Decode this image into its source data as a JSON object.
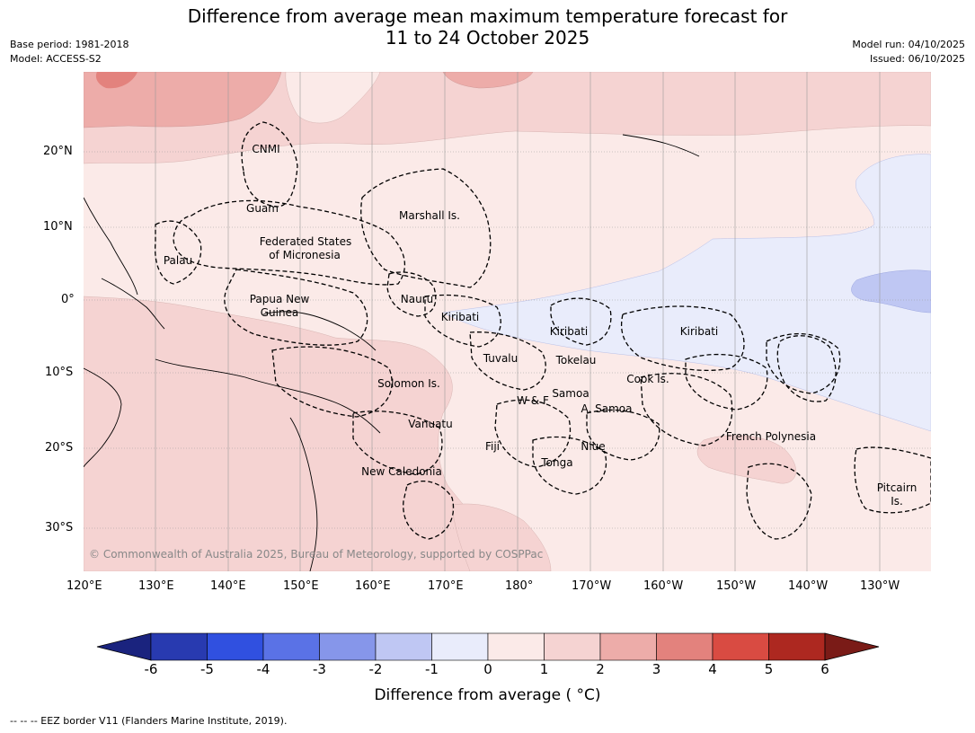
{
  "title_line1": "Difference from average mean maximum temperature forecast for",
  "title_line2": "11 to 24 October 2025",
  "base_period": "Base period: 1981-2018",
  "model": "Model: ACCESS-S2",
  "model_run": "Model run: 04/10/2025",
  "issued": "Issued: 06/10/2025",
  "lat_labels": [
    "20°N",
    "10°N",
    "0°",
    "10°S",
    "20°S",
    "30°S"
  ],
  "lon_labels": [
    "120°E",
    "130°E",
    "140°E",
    "150°E",
    "160°E",
    "170°E",
    "180°",
    "170°W",
    "160°W",
    "150°W",
    "140°W",
    "130°W"
  ],
  "places": {
    "cnmi": "CNMI",
    "guam": "Guam",
    "marshall": "Marshall Is.",
    "fsm1": "Federated States",
    "fsm2": "of Micronesia",
    "palau": "Palau",
    "png1": "Papua New",
    "png2": "Guinea",
    "nauru": "Nauru",
    "kiribati_w": "Kiribati",
    "kiribati_c": "Kiribati",
    "kiribati_e": "Kiribati",
    "tuvalu": "Tuvalu",
    "tokelau": "Tokelau",
    "cook": "Cook Is.",
    "solomon": "Solomon Is.",
    "samoa": "Samoa",
    "wf": "W & F",
    "asamoa": "A. Samoa",
    "vanuatu": "Vanuatu",
    "fiji": "Fiji",
    "niue": "Niue",
    "tonga": "Tonga",
    "newcal": "New Caledonia",
    "frpoly": "French Polynesia",
    "pitcairn1": "Pitcairn",
    "pitcairn2": "Is."
  },
  "copyright": "© Commonwealth of Australia 2025, Bureau of Meteorology, supported by COSPPac",
  "colorbar": {
    "ticks": [
      "-6",
      "-5",
      "-4",
      "-3",
      "-2",
      "-1",
      "0",
      "1",
      "2",
      "3",
      "4",
      "5",
      "6"
    ],
    "colors": [
      "#1a237e",
      "#283ab0",
      "#3050e0",
      "#5a72e6",
      "#8696ea",
      "#bfc7f3",
      "#e9ecfb",
      "#fbeae8",
      "#f5d3d2",
      "#edaca9",
      "#e3827d",
      "#d94b42",
      "#ad2820",
      "#7a1b17"
    ],
    "label": "Difference from average ( °C)"
  },
  "footer": "--  --  -- EEZ border V11 (Flanders Marine Institute, 2019)."
}
